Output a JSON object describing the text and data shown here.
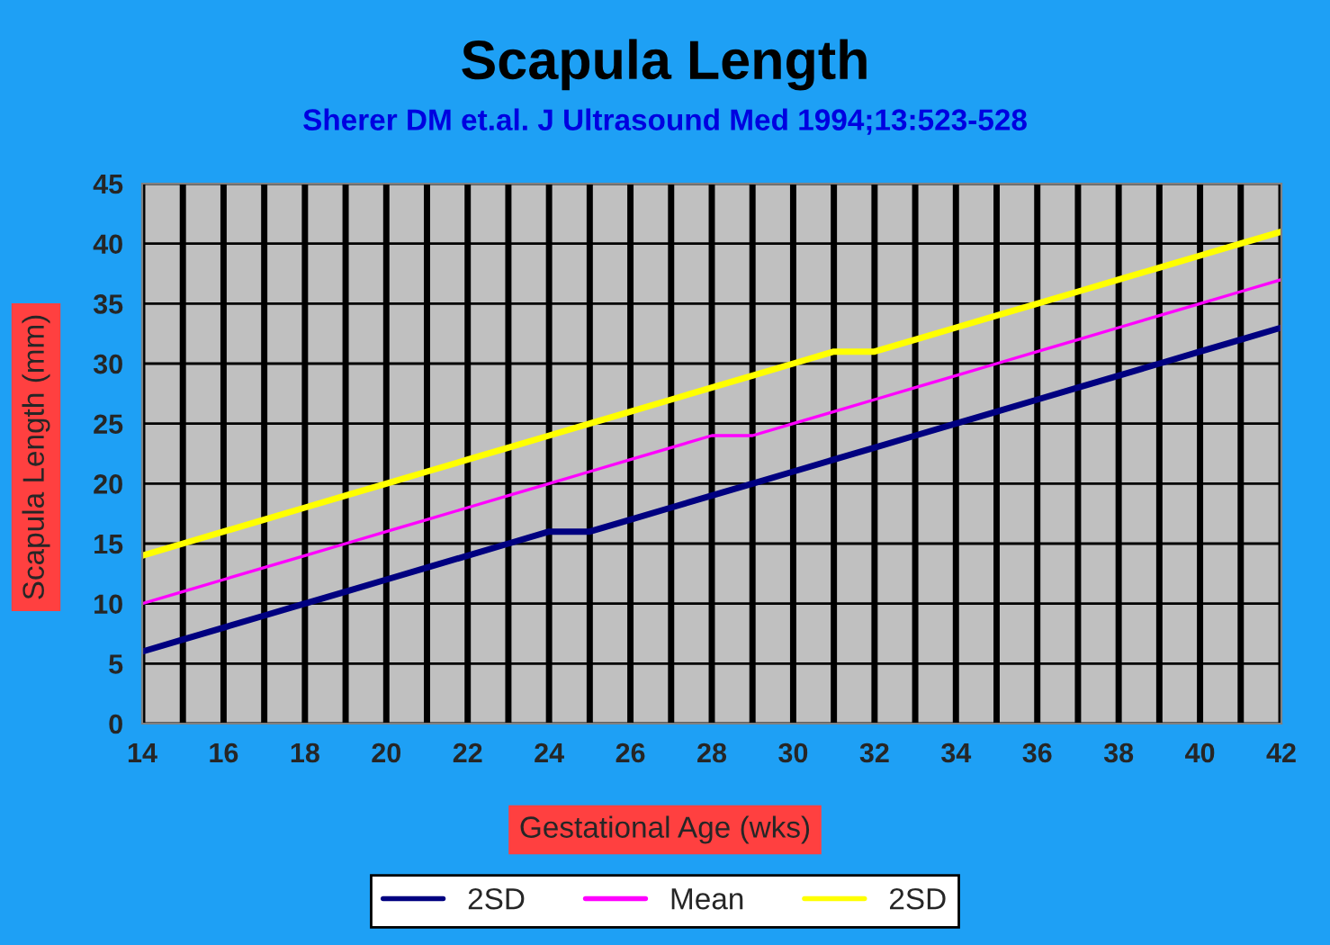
{
  "chart_data": {
    "type": "line",
    "title": "Scapula Length",
    "subtitle": "Sherer DM et.al. J Ultrasound Med 1994;13:523-528",
    "xlabel": "Gestational Age (wks)",
    "ylabel": "Scapula Length (mm)",
    "x": [
      14,
      15,
      16,
      17,
      18,
      19,
      20,
      21,
      22,
      23,
      24,
      25,
      26,
      27,
      28,
      29,
      30,
      31,
      32,
      33,
      34,
      35,
      36,
      37,
      38,
      39,
      40,
      41,
      42
    ],
    "series": [
      {
        "name": "2SD",
        "color": "#000080",
        "values": [
          6,
          7,
          8,
          9,
          10,
          11,
          12,
          13,
          14,
          15,
          16,
          16,
          17,
          18,
          19,
          20,
          21,
          22,
          23,
          24,
          25,
          26,
          27,
          28,
          29,
          30,
          31,
          32,
          33
        ]
      },
      {
        "name": "Mean",
        "color": "#ff00ff",
        "values": [
          10,
          11,
          12,
          13,
          14,
          15,
          16,
          17,
          18,
          19,
          20,
          21,
          22,
          23,
          24,
          24,
          25,
          26,
          27,
          28,
          29,
          30,
          31,
          32,
          33,
          34,
          35,
          36,
          37
        ]
      },
      {
        "name": "2SD",
        "color": "#ffff00",
        "values": [
          14,
          15,
          16,
          17,
          18,
          19,
          20,
          21,
          22,
          23,
          24,
          25,
          26,
          27,
          28,
          29,
          30,
          31,
          31,
          32,
          33,
          34,
          35,
          36,
          37,
          38,
          39,
          40,
          41
        ]
      }
    ],
    "xlim": [
      14,
      42
    ],
    "ylim": [
      0,
      45
    ],
    "xticks": [
      14,
      {
        "value": 15,
        "label": null
      },
      16,
      {
        "value": 17,
        "label": null
      },
      18,
      {
        "value": 19,
        "label": null
      },
      20,
      {
        "value": 21,
        "label": null
      },
      22,
      {
        "value": 23,
        "label": null
      },
      24,
      {
        "value": 25,
        "label": null
      },
      26,
      {
        "value": 27,
        "label": null
      },
      28,
      {
        "value": 29,
        "label": null
      },
      30,
      {
        "value": 31,
        "label": null
      },
      32,
      {
        "value": 33,
        "label": null
      },
      34,
      {
        "value": 35,
        "label": null
      },
      36,
      {
        "value": 37,
        "label": null
      },
      38,
      {
        "value": 39,
        "label": null
      },
      40,
      {
        "value": 41,
        "label": null
      },
      42
    ],
    "yticks": [
      0,
      5,
      10,
      15,
      20,
      25,
      30,
      35,
      40,
      45
    ],
    "grid": true,
    "legend": "bottom",
    "marker": "none",
    "line_style": "solid"
  }
}
